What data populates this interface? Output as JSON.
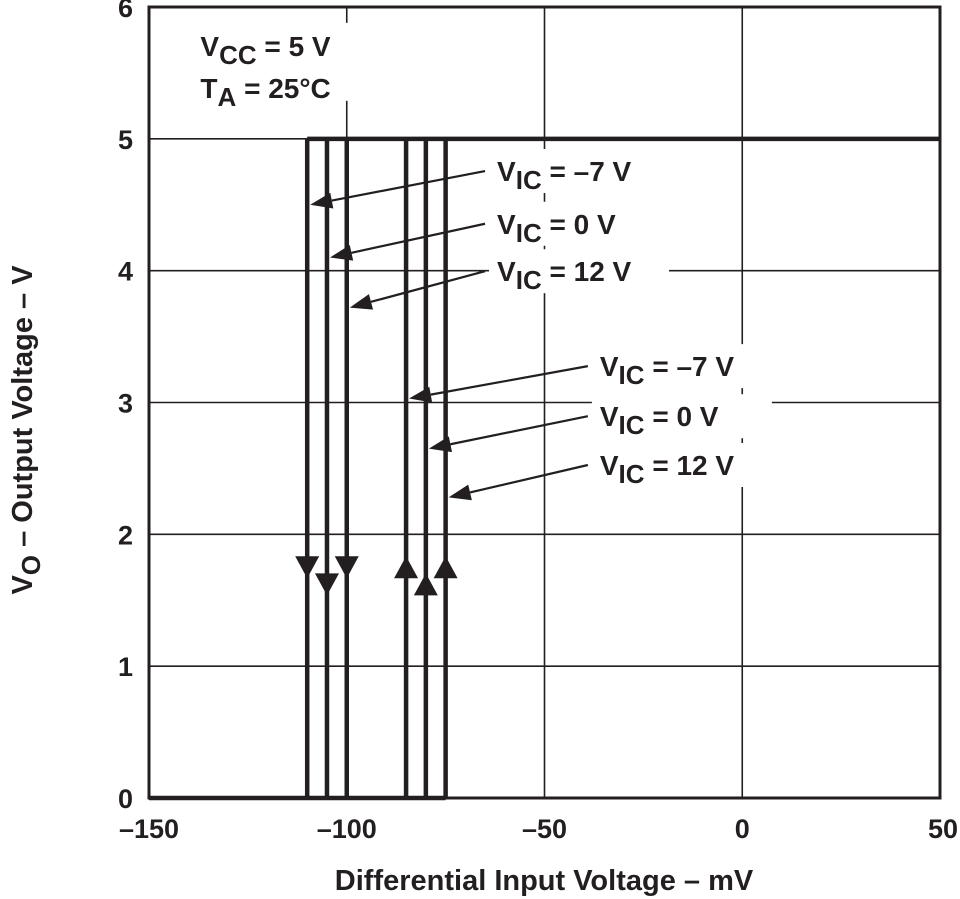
{
  "chart_data": {
    "type": "line",
    "title": "",
    "xlabel": "Differential Input Voltage – mV",
    "ylabel": "V_O – Output Voltage – V",
    "ylabel_main": "V",
    "ylabel_sub": "O",
    "ylabel_rest": " – Output Voltage – V",
    "xlim": [
      -150,
      50
    ],
    "ylim": [
      0,
      6
    ],
    "x_ticks": [
      -150,
      -100,
      -50,
      0,
      50
    ],
    "x_tick_labels": [
      "–150",
      "–100",
      "–50",
      "0",
      "50"
    ],
    "y_ticks": [
      0,
      1,
      2,
      3,
      4,
      5,
      6
    ],
    "y_tick_labels": [
      "0",
      "1",
      "2",
      "3",
      "4",
      "5",
      "6"
    ],
    "grid": true,
    "conditions": [
      {
        "main": "V",
        "sub": "CC",
        "rest": " = 5 V"
      },
      {
        "main": "T",
        "sub": "A",
        "rest": " = 25°C"
      }
    ],
    "series": [
      {
        "name": "V_IC = –7 V (high-to-low)",
        "direction": "down",
        "x": [
          -110,
          -110
        ],
        "y": [
          5,
          0
        ],
        "arrow_y": 1.75
      },
      {
        "name": "V_IC = 0 V (high-to-low)",
        "direction": "down",
        "x": [
          -105,
          -105
        ],
        "y": [
          5,
          0
        ],
        "arrow_y": 1.62
      },
      {
        "name": "V_IC = 12 V (high-to-low)",
        "direction": "down",
        "x": [
          -100,
          -100
        ],
        "y": [
          5,
          0
        ],
        "arrow_y": 1.75
      },
      {
        "name": "V_IC = –7 V (low-to-high)",
        "direction": "up",
        "x": [
          -85,
          -85
        ],
        "y": [
          0,
          5
        ],
        "arrow_y": 1.75
      },
      {
        "name": "V_IC = 0 V (low-to-high)",
        "direction": "up",
        "x": [
          -80,
          -80
        ],
        "y": [
          0,
          5
        ],
        "arrow_y": 1.62
      },
      {
        "name": "V_IC = 12 V (low-to-high)",
        "direction": "up",
        "x": [
          -75,
          -75
        ],
        "y": [
          0,
          5
        ],
        "arrow_y": 1.75
      }
    ],
    "low_level": {
      "x": [
        -150,
        -75
      ],
      "y": 0
    },
    "high_level": {
      "x": [
        -110,
        50
      ],
      "y": 5
    },
    "annotations": [
      {
        "main": "V",
        "sub": "IC",
        "rest": " = –7 V",
        "target_series": 0,
        "target_y": 4.5,
        "label_x": -62,
        "label_y": 4.68
      },
      {
        "main": "V",
        "sub": "IC",
        "rest": " = 0 V",
        "target_series": 1,
        "target_y": 4.1,
        "label_x": -62,
        "label_y": 4.28
      },
      {
        "main": "V",
        "sub": "IC",
        "rest": " = 12 V",
        "target_series": 2,
        "target_y": 3.72,
        "label_x": -62,
        "label_y": 3.92
      },
      {
        "main": "V",
        "sub": "IC",
        "rest": " = –7 V",
        "target_series": 3,
        "target_y": 3.03,
        "label_x": -36,
        "label_y": 3.2
      },
      {
        "main": "V",
        "sub": "IC",
        "rest": " = 0 V",
        "target_series": 4,
        "target_y": 2.65,
        "label_x": -36,
        "label_y": 2.82
      },
      {
        "main": "V",
        "sub": "IC",
        "rest": " = 12 V",
        "target_series": 5,
        "target_y": 2.28,
        "label_x": -36,
        "label_y": 2.45
      }
    ]
  }
}
